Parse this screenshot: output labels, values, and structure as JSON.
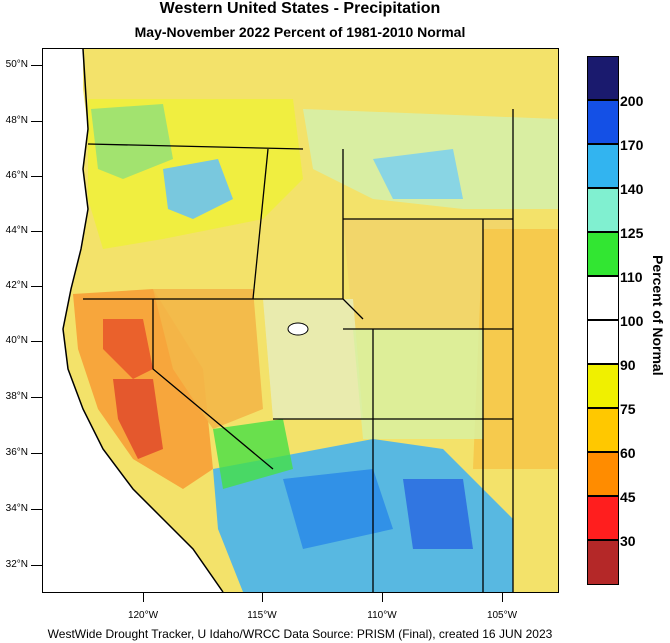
{
  "title": "Western United States - Precipitation",
  "subtitle": "May-November 2022  Percent of 1981-2010 Normal",
  "lat_labels": [
    "50°N",
    "48°N",
    "46°N",
    "44°N",
    "42°N",
    "40°N",
    "38°N",
    "36°N",
    "34°N",
    "32°N"
  ],
  "lon_labels": [
    "120°W",
    "115°W",
    "110°W",
    "105°W"
  ],
  "legend": {
    "title": "Percent of Normal",
    "breaks": [
      "200",
      "170",
      "140",
      "125",
      "110",
      "100",
      "90",
      "75",
      "60",
      "45",
      "30"
    ],
    "colors": [
      "#1a1a6e",
      "#1450e6",
      "#32b4f0",
      "#80f0d0",
      "#32e632",
      "#ffffff",
      "#ffffff",
      "#f0f000",
      "#ffc800",
      "#ff8c00",
      "#ff1e1e",
      "#b42828"
    ]
  },
  "footer": "WestWide Drought Tracker, U Idaho/WRCC Data Source: PRISM (Final), created 16 JUN 2023"
}
